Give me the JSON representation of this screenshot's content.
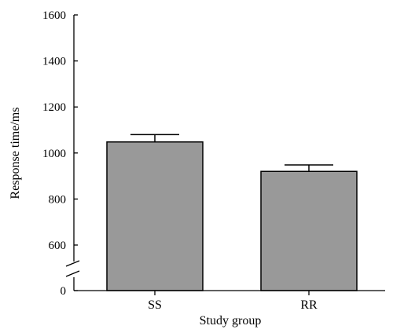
{
  "chart_data": {
    "type": "bar",
    "categories": [
      "SS",
      "RR"
    ],
    "values": [
      1048,
      920
    ],
    "errors": [
      32,
      28
    ],
    "xlabel": "Study group",
    "ylabel": "Response time/ms",
    "ylim": [
      0,
      1600
    ],
    "axis_break": true,
    "yticks": [
      0,
      600,
      800,
      1000,
      1200,
      1400,
      1600
    ],
    "tick_labels": [
      "0",
      "600",
      "800",
      "1000",
      "1200",
      "1400",
      "1600"
    ],
    "bar_color": "#999999",
    "edge_color": "#000000",
    "grid": false
  }
}
